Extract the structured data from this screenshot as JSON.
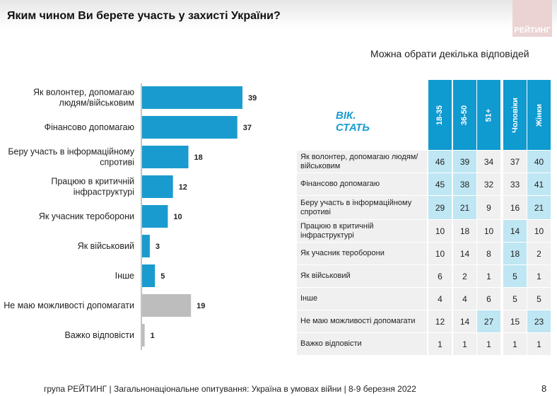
{
  "title": "Яким чином Ви берете участь у захисті України?",
  "logo": "РЕЙТИНГ",
  "subtitle": "Можна обрати декілька відповідей",
  "chart_data": {
    "type": "bar",
    "orientation": "horizontal",
    "title": "Яким чином Ви берете участь у захисті України?",
    "categories": [
      "Як волонтер, допомагаю людям/військовим",
      "Фінансово допомагаю",
      "Беру участь в інформаційному спротиві",
      "Працюю в критичній інфраструктурі",
      "Як учасник тероборони",
      "Як військовий",
      "Інше",
      "Не маю можливості допомагати",
      "Важко відповісти"
    ],
    "label_lines": [
      [
        "Як волонтер, допомагаю",
        "людям/військовим"
      ],
      [
        "Фінансово допомагаю"
      ],
      [
        "Беру участь в інформаційному",
        "спротиві"
      ],
      [
        "Працюю в критичній",
        "інфраструктурі"
      ],
      [
        "Як учасник тероборони"
      ],
      [
        "Як військовий"
      ],
      [
        "Інше"
      ],
      [
        "Не маю можливості допомагати"
      ],
      [
        "Важко відповісти"
      ]
    ],
    "values": [
      39,
      37,
      18,
      12,
      10,
      3,
      5,
      19,
      1
    ],
    "colors": [
      "#1a9bcf",
      "#1a9bcf",
      "#1a9bcf",
      "#1a9bcf",
      "#1a9bcf",
      "#1a9bcf",
      "#1a9bcf",
      "#bdbdbd",
      "#bdbdbd"
    ],
    "xlim": [
      0,
      40
    ]
  },
  "table": {
    "corner": "ВІК. СТАТЬ",
    "columns": [
      "18-35",
      "36-50",
      "51+",
      "Чоловіки",
      "Жінки"
    ],
    "rows": [
      {
        "label": "Як волонтер, допомагаю людям/військовим",
        "values": [
          46,
          39,
          34,
          37,
          40
        ],
        "hl": [
          1,
          1,
          0,
          0,
          1
        ]
      },
      {
        "label": "Фінансово допомагаю",
        "values": [
          45,
          38,
          32,
          33,
          41
        ],
        "hl": [
          1,
          1,
          0,
          0,
          1
        ]
      },
      {
        "label": "Беру участь в інформаційному спротиві",
        "values": [
          29,
          21,
          9,
          16,
          21
        ],
        "hl": [
          1,
          1,
          0,
          0,
          1
        ]
      },
      {
        "label": "Працюю в критичній інфраструктурі",
        "values": [
          10,
          18,
          10,
          14,
          10
        ],
        "hl": [
          0,
          0,
          0,
          1,
          0
        ]
      },
      {
        "label": "Як учасник тероборони",
        "values": [
          10,
          14,
          8,
          18,
          2
        ],
        "hl": [
          0,
          0,
          0,
          1,
          0
        ]
      },
      {
        "label": "Як військовий",
        "values": [
          6,
          2,
          1,
          5,
          1
        ],
        "hl": [
          0,
          0,
          0,
          1,
          0
        ]
      },
      {
        "label": "Інше",
        "values": [
          4,
          4,
          6,
          5,
          5
        ],
        "hl": [
          0,
          0,
          0,
          0,
          0
        ]
      },
      {
        "label": "Не маю можливості допомагати",
        "values": [
          12,
          14,
          27,
          15,
          23
        ],
        "hl": [
          0,
          0,
          1,
          0,
          1
        ]
      },
      {
        "label": "Важко відповісти",
        "values": [
          1,
          1,
          1,
          1,
          1
        ],
        "hl": [
          0,
          0,
          0,
          0,
          0
        ]
      }
    ]
  },
  "colors": {
    "header": "#0f9ad0",
    "highlight": "#bfe6f3",
    "cell": "#f0f0f0"
  },
  "footer": "група РЕЙТИНГ | Загальнонаціональне опитування: Україна в умовах війни | 8-9 березня 2022",
  "page_number": "8"
}
